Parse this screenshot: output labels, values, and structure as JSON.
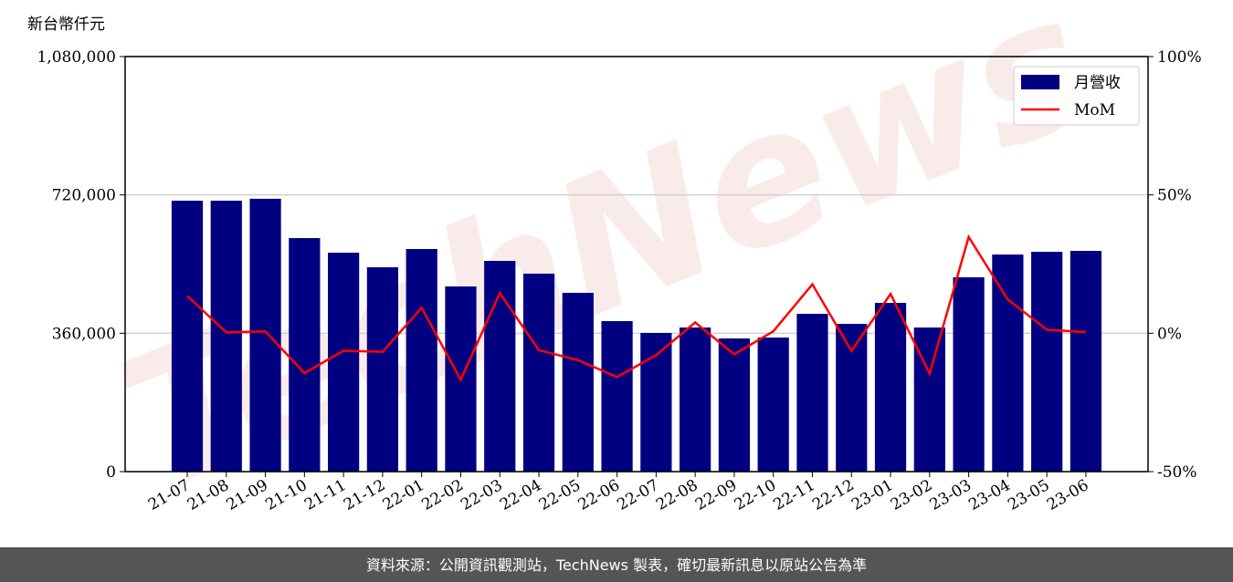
{
  "chart_data": {
    "type": "bar",
    "ylabel": "新台幣仟元",
    "watermark": "TechNews",
    "categories": [
      "21-07",
      "21-08",
      "21-09",
      "21-10",
      "21-11",
      "21-12",
      "22-01",
      "22-02",
      "22-03",
      "22-04",
      "22-05",
      "22-06",
      "22-07",
      "22-08",
      "22-09",
      "22-10",
      "22-11",
      "22-12",
      "23-01",
      "23-02",
      "23-03",
      "23-04",
      "23-05",
      "23-06"
    ],
    "series": [
      {
        "name": "月營收",
        "type": "bar",
        "color": "#000080",
        "values": [
          705000,
          705000,
          710000,
          607700,
          569700,
          531700,
          579200,
          481800,
          548300,
          515100,
          465200,
          391600,
          360800,
          375000,
          346500,
          348900,
          410600,
          384500,
          439100,
          375000,
          505600,
          564900,
          572000,
          574400
        ]
      },
      {
        "name": "MoM",
        "type": "line",
        "color": "#ff0000",
        "axis": "y2",
        "values": [
          13.5,
          0.3,
          0.7,
          -14.4,
          -6.3,
          -6.7,
          9.2,
          -16.8,
          14.5,
          -6.1,
          -9.7,
          -15.8,
          -7.9,
          3.9,
          -7.6,
          0.7,
          17.7,
          -6.4,
          14.2,
          -14.6,
          34.8,
          12.2,
          1.3,
          0.4
        ]
      }
    ],
    "ylim": [
      0,
      1080000
    ],
    "yticks": [
      {
        "value": 0,
        "label": "0"
      },
      {
        "value": 360000,
        "label": "360,000"
      },
      {
        "value": 720000,
        "label": "720,000"
      },
      {
        "value": 1080000,
        "label": "1,080,000"
      }
    ],
    "y2lim": [
      -50,
      100
    ],
    "y2ticks": [
      {
        "value": -50,
        "label": "-50%"
      },
      {
        "value": 0,
        "label": "0%"
      },
      {
        "value": 50,
        "label": "50%"
      },
      {
        "value": 100,
        "label": "100%"
      }
    ],
    "grid": true,
    "legend": "upper right"
  },
  "footer": {
    "text": "資料來源：公開資訊觀測站，TechNews 製表，確切最新訊息以原站公告為準"
  }
}
